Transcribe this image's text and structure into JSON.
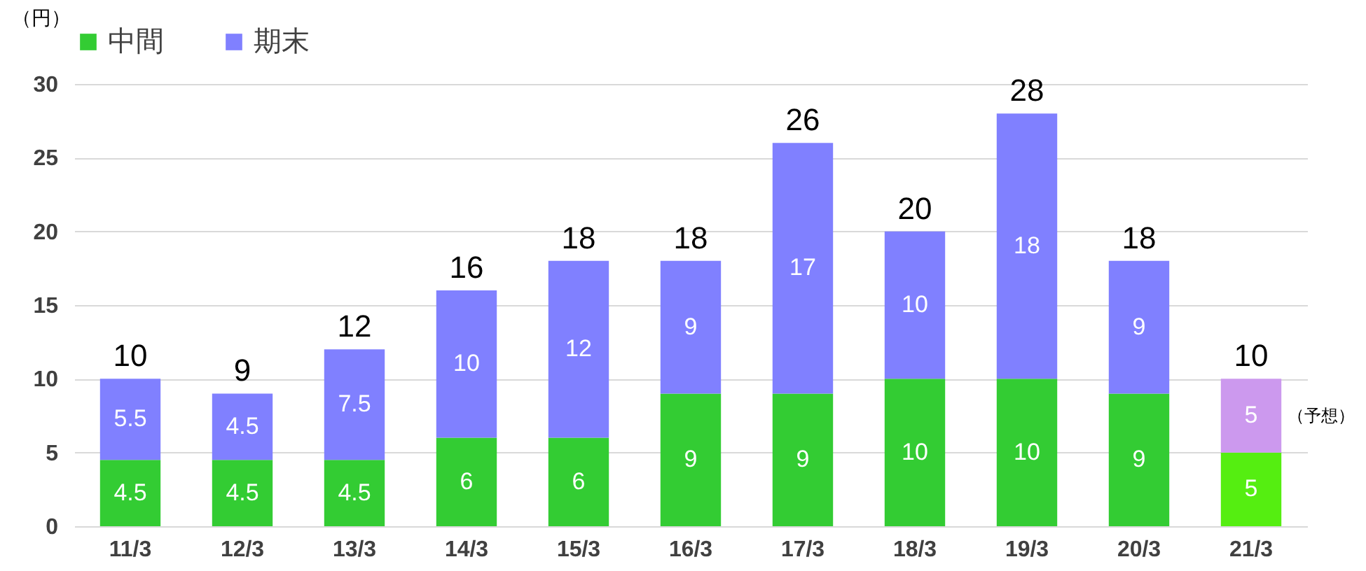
{
  "chart_data": {
    "type": "bar",
    "stacked": true,
    "ylabel": "（円）",
    "categories": [
      "11/3",
      "12/3",
      "13/3",
      "14/3",
      "15/3",
      "16/3",
      "17/3",
      "18/3",
      "19/3",
      "20/3",
      "21/3"
    ],
    "series": [
      {
        "name": "中間",
        "color": "#33cc33",
        "colors": [
          "#33cc33",
          "#33cc33",
          "#33cc33",
          "#33cc33",
          "#33cc33",
          "#33cc33",
          "#33cc33",
          "#33cc33",
          "#33cc33",
          "#33cc33",
          "#55ee11"
        ],
        "values": [
          4.5,
          4.5,
          4.5,
          6,
          6,
          9,
          9,
          10,
          10,
          9,
          5
        ]
      },
      {
        "name": "期末",
        "color": "#8080ff",
        "colors": [
          "#8080ff",
          "#8080ff",
          "#8080ff",
          "#8080ff",
          "#8080ff",
          "#8080ff",
          "#8080ff",
          "#8080ff",
          "#8080ff",
          "#8080ff",
          "#cc99ee"
        ],
        "values": [
          5.5,
          4.5,
          7.5,
          10,
          12,
          9,
          17,
          10,
          18,
          9,
          5
        ]
      }
    ],
    "totals": [
      "10",
      "9",
      "12",
      "16",
      "18",
      "18",
      "26",
      "20",
      "28",
      "18",
      "10"
    ],
    "data_labels": true,
    "annotations": [
      "（予想）"
    ],
    "ylim": [
      0,
      30
    ],
    "yticks": [
      0,
      5,
      10,
      15,
      20,
      25,
      30
    ],
    "grid": "y",
    "legend": "top left"
  }
}
